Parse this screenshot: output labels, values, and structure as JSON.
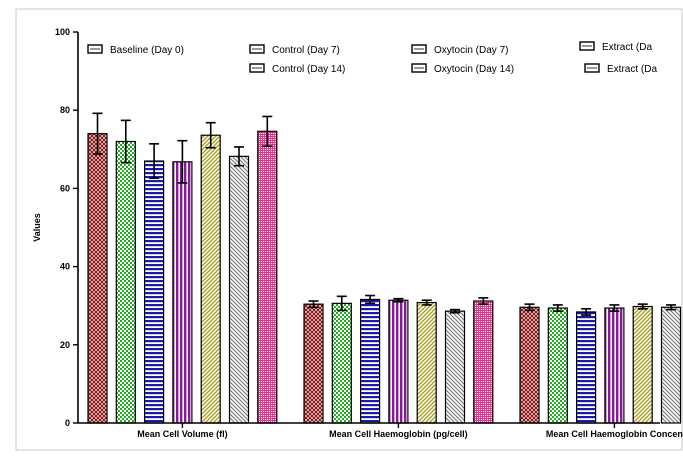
{
  "chart_data": {
    "type": "bar",
    "ylabel": "Values",
    "ylim": [
      0,
      100
    ],
    "yticks": [
      0,
      20,
      40,
      60,
      80,
      100
    ],
    "categories": [
      "Mean Cell Volume (fl)",
      "Mean Cell Haemoglobin (pg/cell)",
      "Mean Cell Haemoglobin Concen"
    ],
    "series": [
      {
        "name": "Baseline (Day 0)",
        "color": "#8b1a1a",
        "values": [
          74.0,
          30.4,
          29.6
        ],
        "errors": [
          5.2,
          0.8,
          0.8
        ]
      },
      {
        "name": "Control (Day 7)",
        "color": "#22aa22",
        "values": [
          72.0,
          30.6,
          29.4
        ],
        "errors": [
          5.4,
          1.8,
          0.8
        ]
      },
      {
        "name": "Control (Day 14)",
        "color": "#1a1aaa",
        "values": [
          67.0,
          31.6,
          28.4
        ],
        "errors": [
          4.4,
          1.0,
          0.8
        ]
      },
      {
        "name": "Oxytocin (Day 7)",
        "color": "#8a1a9a",
        "values": [
          66.8,
          31.4,
          29.4
        ],
        "errors": [
          5.4,
          0.4,
          0.8
        ]
      },
      {
        "name": "Oxytocin (Day 14)",
        "color": "#a8a020",
        "values": [
          73.6,
          30.8,
          29.8
        ],
        "errors": [
          3.2,
          0.6,
          0.6
        ]
      },
      {
        "name": "Extract (Da",
        "color": "#808080",
        "values": [
          68.2,
          28.6,
          29.6
        ],
        "errors": [
          2.4,
          0.4,
          0.6
        ]
      },
      {
        "name": "Extract (Da",
        "color": "#e0308a",
        "values": [
          74.6,
          31.2,
          null
        ],
        "errors": [
          3.8,
          0.8,
          null
        ]
      }
    ],
    "grid": false,
    "legend_position": "top"
  }
}
